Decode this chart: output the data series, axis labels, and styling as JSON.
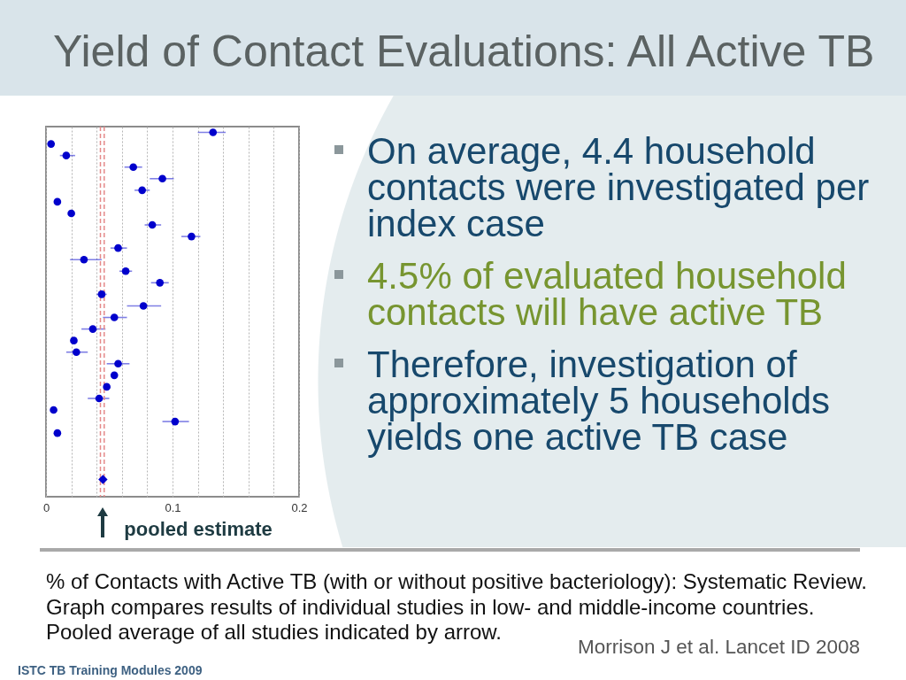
{
  "chart_data": {
    "type": "scatter",
    "orientation": "horizontal",
    "title": "Yield of Contact Evaluations: All Active TB",
    "categories": [
      null,
      null,
      null,
      null,
      null,
      null,
      null,
      null,
      null,
      null,
      null,
      null,
      null,
      null,
      null,
      null,
      null,
      null,
      null,
      null,
      null,
      null,
      null,
      null,
      null,
      null,
      null,
      null,
      null,
      null,
      null,
      null
    ],
    "series": [
      {
        "color": "#0000cc",
        "marker": "circle",
        "values": [
          0.132,
          0.004,
          0.016,
          0.069,
          0.092,
          0.076,
          0.009,
          0.02,
          0.084,
          0.115,
          0.057,
          0.03,
          0.063,
          0.09,
          0.044,
          0.077,
          0.054,
          0.037,
          0.022,
          0.024,
          0.057,
          0.054,
          0.048,
          0.042,
          0.006,
          0.102,
          0.009,
          null,
          null,
          null,
          null,
          null
        ],
        "errors": [
          [
            0.12,
            0.142
          ],
          null,
          [
            0.011,
            0.023
          ],
          [
            0.062,
            0.076
          ],
          [
            0.082,
            0.101
          ],
          [
            0.07,
            0.082
          ],
          null,
          null,
          [
            0.078,
            0.091
          ],
          [
            0.107,
            0.122
          ],
          [
            0.051,
            0.064
          ],
          [
            0.019,
            0.044
          ],
          [
            0.058,
            0.068
          ],
          [
            0.083,
            0.097
          ],
          [
            0.04,
            0.048
          ],
          [
            0.064,
            0.091
          ],
          [
            0.045,
            0.064
          ],
          [
            0.028,
            0.047
          ],
          null,
          [
            0.016,
            0.033
          ],
          [
            0.048,
            0.066
          ],
          null,
          null,
          [
            0.033,
            0.05
          ],
          null,
          [
            0.092,
            0.113
          ],
          null,
          null,
          null,
          null,
          null,
          null
        ]
      },
      {
        "color": "#0000cc",
        "marker": "diamond",
        "values": [
          null,
          null,
          null,
          null,
          null,
          null,
          null,
          null,
          null,
          null,
          null,
          null,
          null,
          null,
          null,
          null,
          null,
          null,
          null,
          null,
          null,
          null,
          null,
          null,
          null,
          null,
          null,
          null,
          null,
          null,
          0.045,
          null
        ]
      }
    ],
    "xlim": [
      0,
      0.2
    ],
    "xticks": [
      0,
      {
        "value": 0.02,
        "label": null
      },
      {
        "value": 0.04,
        "label": null
      },
      {
        "value": 0.06,
        "label": null
      },
      {
        "value": 0.08,
        "label": null
      },
      0.1,
      {
        "value": 0.12,
        "label": null
      },
      {
        "value": 0.14,
        "label": null
      },
      {
        "value": 0.16,
        "label": null
      },
      {
        "value": 0.18,
        "label": null
      },
      0.2
    ],
    "grid": "x",
    "tick_labels": "x",
    "ref_lines": [
      {
        "axis": "x",
        "value": 0.043,
        "color": "#e58a8a",
        "line_style": "dashed"
      },
      {
        "axis": "x",
        "value": 0.046,
        "color": "#e58a8a",
        "line_style": "dashed"
      }
    ],
    "annotations": [
      "pooled estimate",
      "On average, 4.4 household contacts were investigated per index case",
      "4.5% of evaluated household contacts will have active TB",
      "Therefore, investigation of approximately 5 households yields one active TB case",
      "% of Contacts with Active TB (with or without positive bacteriology): Systematic Review.",
      "Graph compares results of individual studies in low- and middle-income countries.",
      "Pooled average of all studies indicated by arrow.",
      "Morrison J et al. Lancet ID 2008",
      "ISTC TB Training Modules 2009"
    ]
  }
}
